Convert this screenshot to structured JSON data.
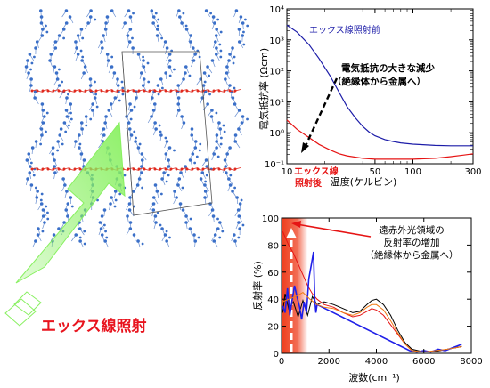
{
  "left_panel": {
    "caption": "エックス線照射",
    "caption_color": "#e8141e",
    "atom_color": "#3a6fc8",
    "atom_accent_color": "#e02a1e",
    "arrow_color": "#88f060"
  },
  "chart_data": [
    {
      "type": "line",
      "ylabel": "電気抵抗率 (Ωcm)",
      "xlabel": "温度(ケルビン)",
      "xlim": [
        10,
        300
      ],
      "ylim": [
        0.1,
        10000
      ],
      "log_y": true,
      "x_ticks": [
        "10",
        "50",
        "100",
        "300"
      ],
      "y_ticks": [
        "10⁴",
        "10³",
        "10²",
        "10¹",
        "10⁰",
        "10⁻¹"
      ],
      "series": [
        {
          "name": "エックス線照射前",
          "color": "#1c1ca8",
          "x": [
            10,
            12,
            15,
            18,
            22,
            26,
            30,
            35,
            40,
            45,
            50,
            60,
            70,
            80,
            100,
            150,
            200,
            250,
            300
          ],
          "y": [
            3000,
            1800,
            700,
            250,
            70,
            20,
            7,
            3,
            1.6,
            1.05,
            0.8,
            0.6,
            0.52,
            0.47,
            0.43,
            0.39,
            0.38,
            0.38,
            0.38
          ]
        },
        {
          "name": "エックス線照射後",
          "color": "#e61414",
          "x": [
            10,
            12,
            15,
            18,
            22,
            26,
            30,
            40,
            50,
            60,
            80,
            100,
            150,
            200,
            250,
            300
          ],
          "y": [
            2.6,
            1.3,
            0.7,
            0.42,
            0.28,
            0.21,
            0.18,
            0.15,
            0.14,
            0.14,
            0.14,
            0.14,
            0.15,
            0.17,
            0.19,
            0.21
          ]
        }
      ],
      "legend_before": "エックス線照射前",
      "legend_after": [
        "エックス線",
        "照射後"
      ],
      "annotation": [
        "電気抵抗の大きな減少",
        "（絶縁体から金属へ）"
      ]
    },
    {
      "type": "line",
      "ylabel": "反射率 (%)",
      "xlabel": "波数(cm⁻¹)",
      "xlim": [
        0,
        8000
      ],
      "ylim": [
        0,
        100
      ],
      "x_ticks": [
        "0",
        "2000",
        "4000",
        "6000",
        "8000"
      ],
      "y_ticks": [
        "0",
        "20",
        "40",
        "60",
        "80",
        "100"
      ],
      "highlight": {
        "x_from": 0,
        "x_to": 1100,
        "color": "#ee3d1c"
      },
      "series": [
        {
          "color": "#e61414",
          "x": [
            50,
            150,
            300,
            500,
            700,
            900,
            1100,
            1300,
            1500,
            1800,
            2200,
            2600,
            3000,
            3300,
            3600,
            3800,
            4000,
            4300,
            4600,
            4900,
            5200,
            5500,
            6000,
            6500,
            7000,
            7600
          ],
          "y": [
            90,
            86,
            80,
            74,
            66,
            58,
            50,
            44,
            40,
            36,
            34,
            30,
            27,
            28,
            31,
            33,
            32,
            28,
            21,
            14,
            7,
            2,
            1,
            1.5,
            3,
            5
          ]
        },
        {
          "color": "#000000",
          "x": [
            50,
            150,
            300,
            500,
            700,
            900,
            1100,
            1300,
            1500,
            1800,
            2200,
            2600,
            3000,
            3300,
            3600,
            3800,
            4000,
            4300,
            4600,
            4900,
            5200,
            5500,
            6000,
            6500,
            7000,
            7600
          ],
          "y": [
            30,
            44,
            33,
            38,
            27,
            39,
            28,
            42,
            36,
            38,
            36,
            33,
            30,
            31,
            36,
            39,
            40,
            36,
            28,
            17,
            8,
            3,
            1,
            1.5,
            3,
            5
          ]
        },
        {
          "color": "#1f1fe8",
          "x": [
            50,
            150,
            250,
            350,
            450,
            550,
            650,
            750,
            850,
            950,
            1050,
            1150,
            1250,
            1350,
            1400,
            1450,
            1500,
            5400,
            5700,
            6000,
            6300,
            6600,
            6900,
            7200,
            7500,
            7600
          ],
          "y": [
            35,
            30,
            48,
            28,
            40,
            50,
            42,
            35,
            25,
            38,
            30,
            55,
            65,
            75,
            40,
            30,
            36,
            2,
            1,
            2,
            1,
            3,
            2,
            4,
            6,
            7
          ]
        },
        {
          "color": "#f07a14",
          "x": [
            50,
            300,
            600,
            900,
            1200,
            1500,
            1800,
            2200,
            2600,
            3000,
            3300,
            3600,
            3800,
            4000,
            4300,
            4600,
            4900,
            5200,
            5500,
            6000,
            7000,
            7600
          ],
          "y": [
            38,
            40,
            42,
            45,
            40,
            36,
            34,
            33,
            30,
            28,
            30,
            34,
            36,
            36,
            32,
            24,
            15,
            7,
            2,
            1,
            3,
            5
          ]
        }
      ],
      "annotation": [
        "遠赤外光領域の",
        "反射率の増加",
        "（絶縁体から金属へ）"
      ]
    }
  ]
}
